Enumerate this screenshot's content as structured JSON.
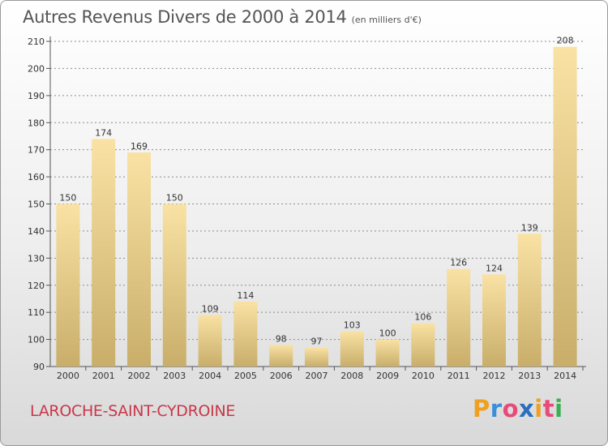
{
  "header": {
    "title": "Autres Revenus Divers de 2000 à 2014",
    "subtitle": "(en milliers d'€)"
  },
  "footer": {
    "commune": "LAROCHE-SAINT-CYDROINE",
    "brand": {
      "letters": [
        "P",
        "r",
        "o",
        "x",
        "i",
        "t",
        "i"
      ],
      "colors": [
        "#f0a020",
        "#3a8fd8",
        "#e84a7a",
        "#2a6fc0",
        "#f0a020",
        "#e84a7a",
        "#3ab050"
      ]
    }
  },
  "colors": {
    "bar_light": "#f9e2a4",
    "bar_dark": "#c9ae6a",
    "axis": "#555555",
    "grid": "#8c8c8c"
  },
  "chart_data": {
    "type": "bar",
    "title": "Autres Revenus Divers de 2000 à 2014",
    "subtitle": "(en milliers d'€)",
    "categories": [
      "2000",
      "2001",
      "2002",
      "2003",
      "2004",
      "2005",
      "2006",
      "2007",
      "2008",
      "2009",
      "2010",
      "2011",
      "2012",
      "2013",
      "2014"
    ],
    "values": [
      150,
      174,
      169,
      150,
      109,
      114,
      98,
      97,
      103,
      100,
      106,
      126,
      124,
      139,
      208
    ],
    "ylim": [
      90,
      210
    ],
    "yticks": [
      90,
      100,
      110,
      120,
      130,
      140,
      150,
      160,
      170,
      180,
      190,
      200,
      210
    ],
    "grid": true,
    "data_labels": true
  }
}
